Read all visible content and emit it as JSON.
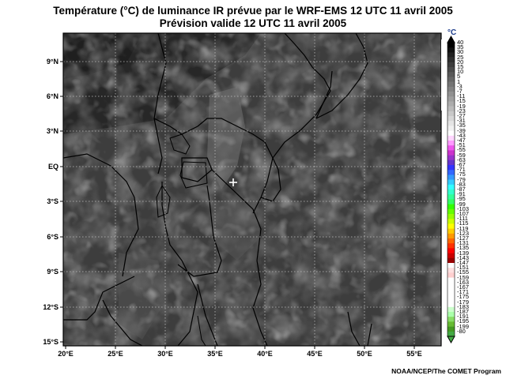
{
  "title": {
    "line1": "Température (°C) de luminance IR prévue par le WRF-EMS 12 UTC 11 avril 2005",
    "line2": "Prévision valide 12 UTC 11 avril 2005"
  },
  "map": {
    "region": "East Africa",
    "lon_range": [
      20,
      58
    ],
    "lat_range": [
      -15,
      12
    ],
    "lat_ticks": [
      {
        "value": 9,
        "label": "9°N"
      },
      {
        "value": 6,
        "label": "6°N"
      },
      {
        "value": 3,
        "label": "3°N"
      },
      {
        "value": 0,
        "label": "EQ"
      },
      {
        "value": -3,
        "label": "3°S"
      },
      {
        "value": -6,
        "label": "6°S"
      },
      {
        "value": -9,
        "label": "9°S"
      },
      {
        "value": -12,
        "label": "12°S"
      },
      {
        "value": -15,
        "label": "15°S"
      }
    ],
    "lon_ticks": [
      {
        "value": 20,
        "label": "20°E"
      },
      {
        "value": 25,
        "label": "25°E"
      },
      {
        "value": 30,
        "label": "30°E"
      },
      {
        "value": 35,
        "label": "35°E"
      },
      {
        "value": 40,
        "label": "40°E"
      },
      {
        "value": 45,
        "label": "45°E"
      },
      {
        "value": 50,
        "label": "50°E"
      },
      {
        "value": 55,
        "label": "55°E"
      }
    ],
    "marker": {
      "symbol": "+",
      "lon": 36.8,
      "lat": -1.3
    },
    "background_color": "#3d3d3d",
    "border_color": "#000000",
    "grid": "dotted"
  },
  "color_scale": {
    "unit": "°C",
    "labels": [
      "40",
      "35",
      "30",
      "25",
      "20",
      "15",
      "10",
      "5",
      "1",
      "-3",
      "-7",
      "-11",
      "-15",
      "-19",
      "-23",
      "-27",
      "-31",
      "-35",
      "-39",
      "-43",
      "-47",
      "-51",
      "-55",
      "-59",
      "-63",
      "-67",
      "-71",
      "-75",
      "-79",
      "-83",
      "-87",
      "-91",
      "-95",
      "-99",
      "-103",
      "-107",
      "-111",
      "-115",
      "-119",
      "-123",
      "-127",
      "-131",
      "-135",
      "-139",
      "-143",
      "-147",
      "-151",
      "-155",
      "-159",
      "-163",
      "-167",
      "-171",
      "-175",
      "-179",
      "-183",
      "-187",
      "-191",
      "-195",
      "-199",
      "-80"
    ],
    "colors": [
      "#000000",
      "#101010",
      "#202020",
      "#2e2e2e",
      "#3c3c3c",
      "#4a4a4a",
      "#585858",
      "#666666",
      "#747474",
      "#828282",
      "#909090",
      "#9e9e9e",
      "#acacac",
      "#bababa",
      "#c8c8c8",
      "#d6d6d6",
      "#e4e4e4",
      "#f0f0f0",
      "#ffffff",
      "#ffd6ff",
      "#ff99ff",
      "#ee55ee",
      "#cc33cc",
      "#9933cc",
      "#6633cc",
      "#3333ff",
      "#3366ff",
      "#3399ff",
      "#33ccff",
      "#33ffff",
      "#33ffcc",
      "#33ff99",
      "#33ff66",
      "#33ff00",
      "#66ff00",
      "#99ff00",
      "#ccff00",
      "#ffff00",
      "#ffcc00",
      "#ff9900",
      "#ff6600",
      "#ff3300",
      "#ff0000",
      "#cc0000",
      "#990000",
      "#ffffff",
      "#ffe0e0",
      "#ffd0d0",
      "#ffffff",
      "#ffffff",
      "#ffffff",
      "#ffffff",
      "#ffffff",
      "#ffffff",
      "#ccffcc",
      "#aaffaa",
      "#88dd66",
      "#66bb33",
      "#449922",
      "#44aa44"
    ]
  },
  "credit": "NOAA/NCEP/The COMET Program"
}
